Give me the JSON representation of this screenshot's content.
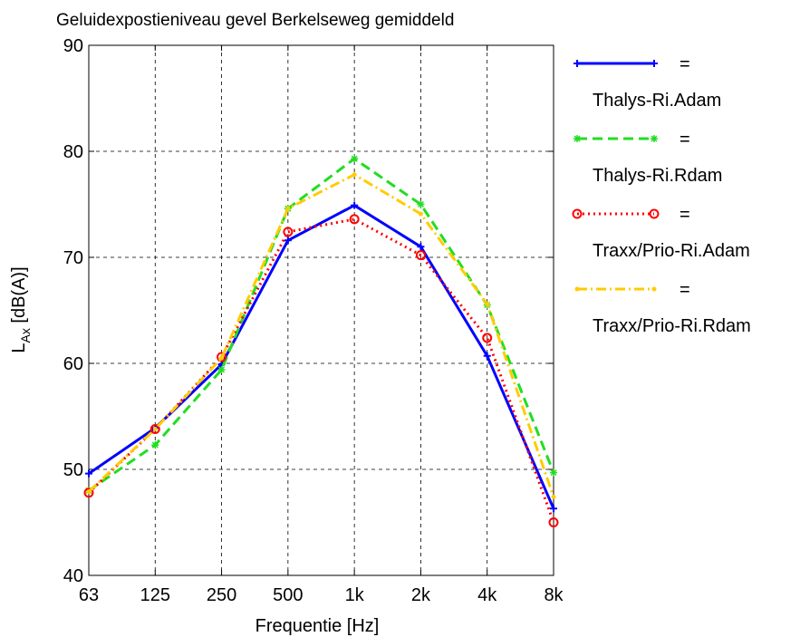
{
  "chart_data": {
    "type": "line",
    "title": "Geluidexpostieniveau gevel Berkelseweg gemiddeld",
    "xlabel": "Frequentie [Hz]",
    "ylabel_main": "L",
    "ylabel_sub": "Ax",
    "ylabel_rest": " [dB(A)]",
    "categories": [
      "63",
      "125",
      "250",
      "500",
      "1k",
      "2k",
      "4k",
      "8k"
    ],
    "ylim": [
      40,
      90
    ],
    "yticks": [
      "40",
      "50",
      "60",
      "70",
      "80",
      "90"
    ],
    "grid": true,
    "legend_position": "right",
    "legend_equals": "=",
    "series": [
      {
        "name": "Thalys-Ri.Adam",
        "color": "#0000ff",
        "dash": "solid",
        "marker": "plus",
        "values": [
          49.6,
          53.9,
          59.9,
          71.6,
          74.9,
          71.0,
          60.7,
          46.3
        ]
      },
      {
        "name": "Thalys-Ri.Rdam",
        "color": "#22dd22",
        "dash": "dashed",
        "marker": "star",
        "values": [
          48.0,
          52.3,
          59.4,
          74.6,
          79.3,
          75.0,
          65.5,
          49.7
        ]
      },
      {
        "name": "Traxx/Prio-Ri.Adam",
        "color": "#ff0000",
        "dash": "dotted",
        "marker": "circle",
        "values": [
          47.8,
          53.8,
          60.6,
          72.4,
          73.6,
          70.2,
          62.4,
          45.0
        ]
      },
      {
        "name": "Traxx/Prio-Ri.Rdam",
        "color": "#ffcc00",
        "dash": "dashdot",
        "marker": "dot",
        "values": [
          47.9,
          53.8,
          60.5,
          74.6,
          77.8,
          74.1,
          65.6,
          47.4
        ]
      }
    ]
  }
}
